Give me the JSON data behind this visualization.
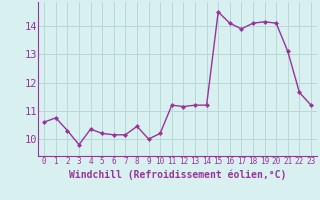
{
  "x": [
    0,
    1,
    2,
    3,
    4,
    5,
    6,
    7,
    8,
    9,
    10,
    11,
    12,
    13,
    14,
    15,
    16,
    17,
    18,
    19,
    20,
    21,
    22,
    23
  ],
  "y": [
    10.6,
    10.75,
    10.3,
    9.8,
    10.35,
    10.2,
    10.15,
    10.15,
    10.45,
    10.0,
    10.2,
    11.2,
    11.15,
    11.2,
    11.2,
    14.5,
    14.1,
    13.9,
    14.1,
    14.15,
    14.1,
    13.1,
    11.65,
    11.2
  ],
  "line_color": "#993399",
  "marker": "D",
  "marker_size": 2.0,
  "line_width": 1.0,
  "bg_color": "#d8f0f0",
  "grid_color": "#b8d8d8",
  "xlabel": "Windchill (Refroidissement éolien,°C)",
  "xlabel_color": "#993399",
  "xlabel_fontsize": 7,
  "ylabel_ticks": [
    10,
    11,
    12,
    13,
    14
  ],
  "ylim": [
    9.4,
    14.85
  ],
  "xlim": [
    -0.5,
    23.5
  ],
  "xtick_fontsize": 5.5,
  "ytick_fontsize": 7.5,
  "tick_color": "#993399",
  "spine_color": "#993399"
}
